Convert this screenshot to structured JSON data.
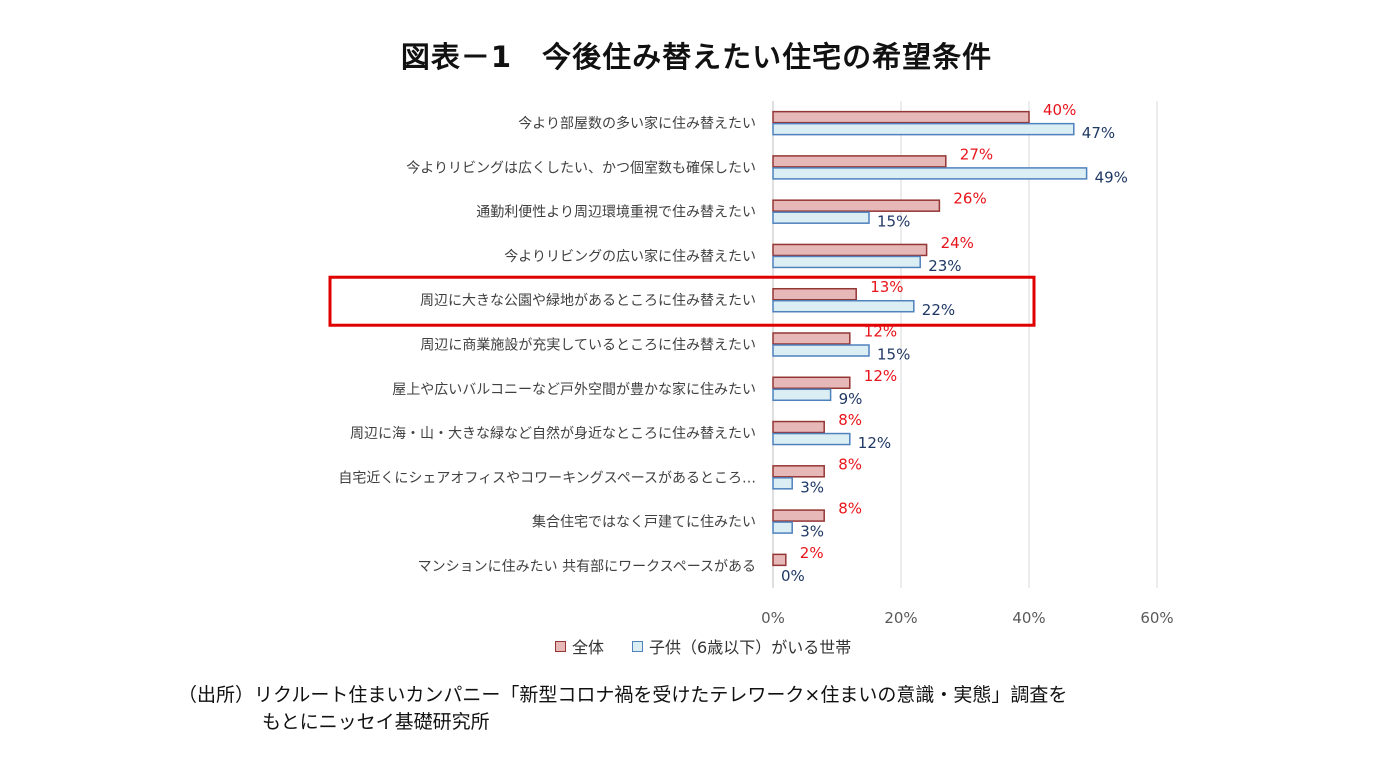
{
  "title": "図表－1　今後住み替えたい住宅の希望条件",
  "chart_data": {
    "type": "bar",
    "orientation": "horizontal",
    "categories": [
      "今より部屋数の多い家に住み替えたい",
      "今よりリビングは広くしたい、かつ個室数も確保したい",
      "通勤利便性より周辺環境重視で住み替えたい",
      "今よりリビングの広い家に住み替えたい",
      "周辺に大きな公園や緑地があるところに住み替えたい",
      "周辺に商業施設が充実しているところに住み替えたい",
      "屋上や広いバルコニーなど戸外空間が豊かな家に住みたい",
      "周辺に海・山・大きな緑など自然が身近なところに住み替えたい",
      "自宅近くにシェアオフィスやコワーキングスペースがあるところ…",
      "集合住宅ではなく戸建てに住みたい",
      "マンションに住みたい 共有部にワークスペースがある"
    ],
    "series": [
      {
        "name": "全体",
        "values": [
          40,
          27,
          26,
          24,
          13,
          12,
          12,
          8,
          8,
          8,
          2
        ],
        "labels": [
          "40%",
          "27%",
          "26%",
          "24%",
          "13%",
          "12%",
          "12%",
          "8%",
          "8%",
          "8%",
          "2%"
        ],
        "fill": "#e6b9b8",
        "stroke": "#943634",
        "label_color": "#e8141b"
      },
      {
        "name": "子供（6歳以下）がいる世帯",
        "values": [
          47,
          49,
          15,
          23,
          22,
          15,
          9,
          12,
          3,
          3,
          0
        ],
        "labels": [
          "47%",
          "49%",
          "15%",
          "23%",
          "22%",
          "15%",
          "9%",
          "12%",
          "3%",
          "3%",
          "0%"
        ],
        "fill": "#dbeef4",
        "stroke": "#4f81bd",
        "label_color": "#1f3864"
      }
    ],
    "xlim": [
      0,
      60
    ],
    "xticks": [
      "0%",
      "20%",
      "40%",
      "60%"
    ],
    "grid": true,
    "legend_position": "bottom",
    "highlight_category": "周辺に大きな公園や緑地があるところに住み替えたい",
    "highlight_color": "#e00000"
  },
  "source": {
    "line1": "（出所）リクルート住まいカンパニー「新型コロナ禍を受けたテレワーク×住まいの意識・実態」調査を",
    "line2": "もとにニッセイ基礎研究所"
  }
}
